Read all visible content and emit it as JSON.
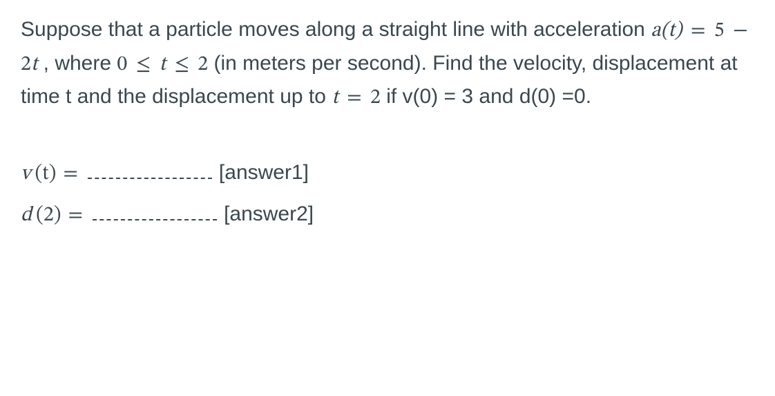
{
  "problem": {
    "text_before_a": "Suppose that a particle moves along a straight line with acceleration  ",
    "a_expr_lhs": "a(t)",
    "a_expr_eq": "=",
    "a_expr_rhs_5": "5",
    "a_expr_minus": "−",
    "a_expr_2t": "2t",
    "comma_where": " , where ",
    "range_0": "0",
    "range_le1": "≤",
    "range_t": "t",
    "range_le2": "≤",
    "range_2": "2",
    "units": "  (in meters per second). Find the velocity, displacement at time t and the displacement up to  ",
    "t_eq": "t",
    "eq_sign2": "=",
    "two": "2",
    "if_text": "  if v(0) = 3 and d(0) =0."
  },
  "answers": {
    "line1_lhs_v": "v",
    "line1_lhs_paren_t": "(t)",
    "line1_eq": "=",
    "line1_tag": "[answer1]",
    "line2_lhs_d": "d",
    "line2_lhs_paren_2": "(2)",
    "line2_eq": "=",
    "line2_tag": "[answer2]"
  },
  "colors": {
    "text": "#3a474e",
    "background": "#ffffff"
  }
}
